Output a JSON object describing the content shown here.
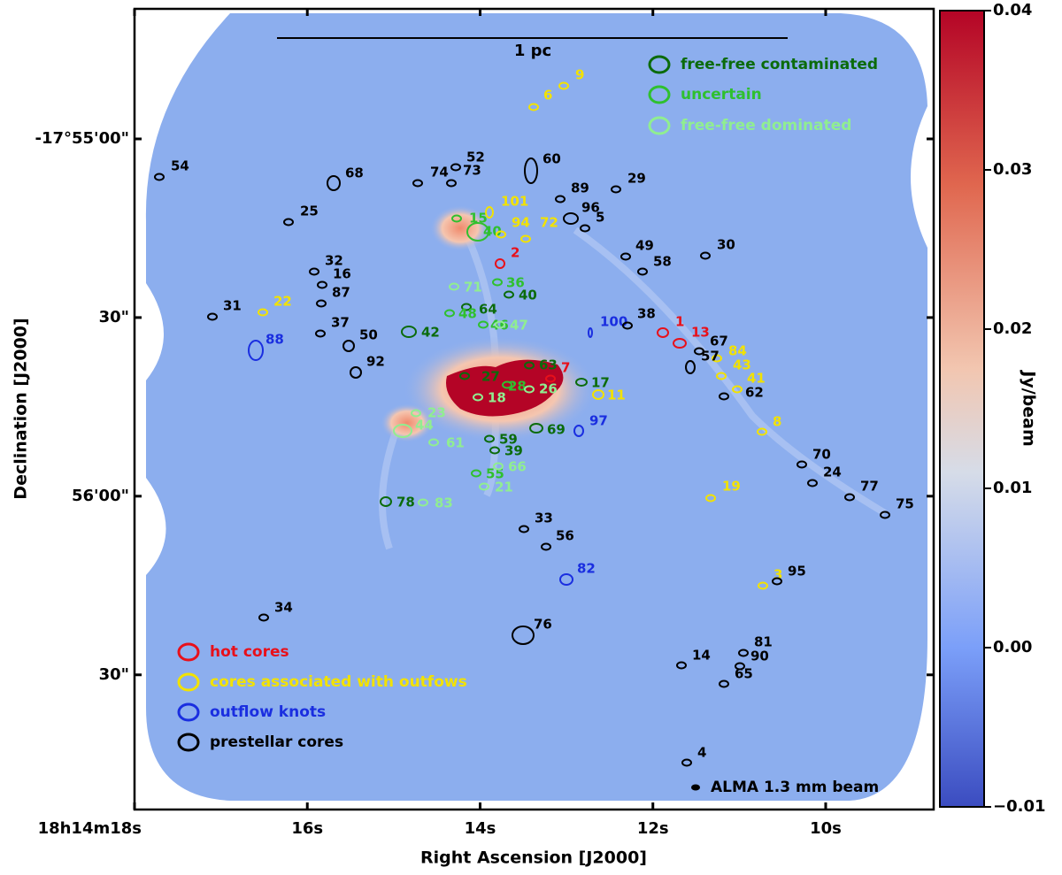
{
  "chart_data": {
    "type": "map",
    "xlabel": "Right Ascension [J2000]",
    "ylabel": "Declination [J2000]",
    "xlim": [
      18,
      8.75
    ],
    "xticks": [
      {
        "value": 18,
        "label": "18h14m18s"
      },
      {
        "value": 16,
        "label": "16s"
      },
      {
        "value": 14,
        "label": "14s"
      },
      {
        "value": 12,
        "label": "12s"
      },
      {
        "value": 10,
        "label": "10s"
      }
    ],
    "ylim": [
      -17.94795,
      -17.9106
    ],
    "yticks": [
      {
        "value": -17.916667,
        "label": "-17°55'00\""
      },
      {
        "value": -17.925,
        "label": "30\""
      },
      {
        "value": -17.933333,
        "label": "56'00\""
      },
      {
        "value": -17.941667,
        "label": "30\""
      }
    ],
    "colorbar": {
      "label": "Jy/beam",
      "lim": [
        -0.01,
        0.04
      ],
      "ticks": [
        {
          "value": 0.04,
          "label": "0.04"
        },
        0.03,
        0.02,
        0.01,
        {
          "value": 0,
          "label": "0.00"
        },
        {
          "value": -0.01,
          "label": "−0.01"
        }
      ]
    },
    "scale_bar": "1 pc",
    "beam_label": "ALMA 1.3 mm beam",
    "core_groups": [
      {
        "name": "free-free contaminated",
        "color": "#0b6b0b",
        "cores": [
          "64",
          "42",
          "27",
          "63",
          "17",
          "59",
          "39",
          "69",
          "78",
          "40"
        ]
      },
      {
        "name": "uncertain",
        "color": "#2fc02f",
        "cores": [
          "15",
          "40",
          "36",
          "46",
          "55",
          "28",
          "48"
        ]
      },
      {
        "name": "free-free dominated",
        "color": "#90ee90",
        "cores": [
          "71",
          "47",
          "18",
          "26",
          "23",
          "44",
          "61",
          "66",
          "21",
          "83"
        ]
      },
      {
        "name": "hot cores",
        "color": "#e8101a",
        "cores": [
          "2",
          "1",
          "13",
          "7"
        ]
      },
      {
        "name": "cores associated with outfows",
        "color": "#f2e200",
        "cores": [
          "9",
          "6",
          "101",
          "94",
          "72",
          "22",
          "84",
          "43",
          "41",
          "11",
          "8",
          "19",
          "3"
        ]
      },
      {
        "name": "outflow knots",
        "color": "#1a2ee0",
        "cores": [
          "88",
          "100",
          "97",
          "82"
        ]
      },
      {
        "name": "prestellar cores",
        "color": "#000000",
        "cores": [
          "54",
          "68",
          "74",
          "73",
          "52",
          "60",
          "89",
          "29",
          "25",
          "96",
          "5",
          "49",
          "58",
          "30",
          "32",
          "16",
          "87",
          "31",
          "37",
          "50",
          "92",
          "38",
          "67",
          "57",
          "62",
          "70",
          "24",
          "77",
          "75",
          "33",
          "56",
          "95",
          "34",
          "76",
          "81",
          "90",
          "14",
          "65",
          "4"
        ]
      }
    ]
  }
}
